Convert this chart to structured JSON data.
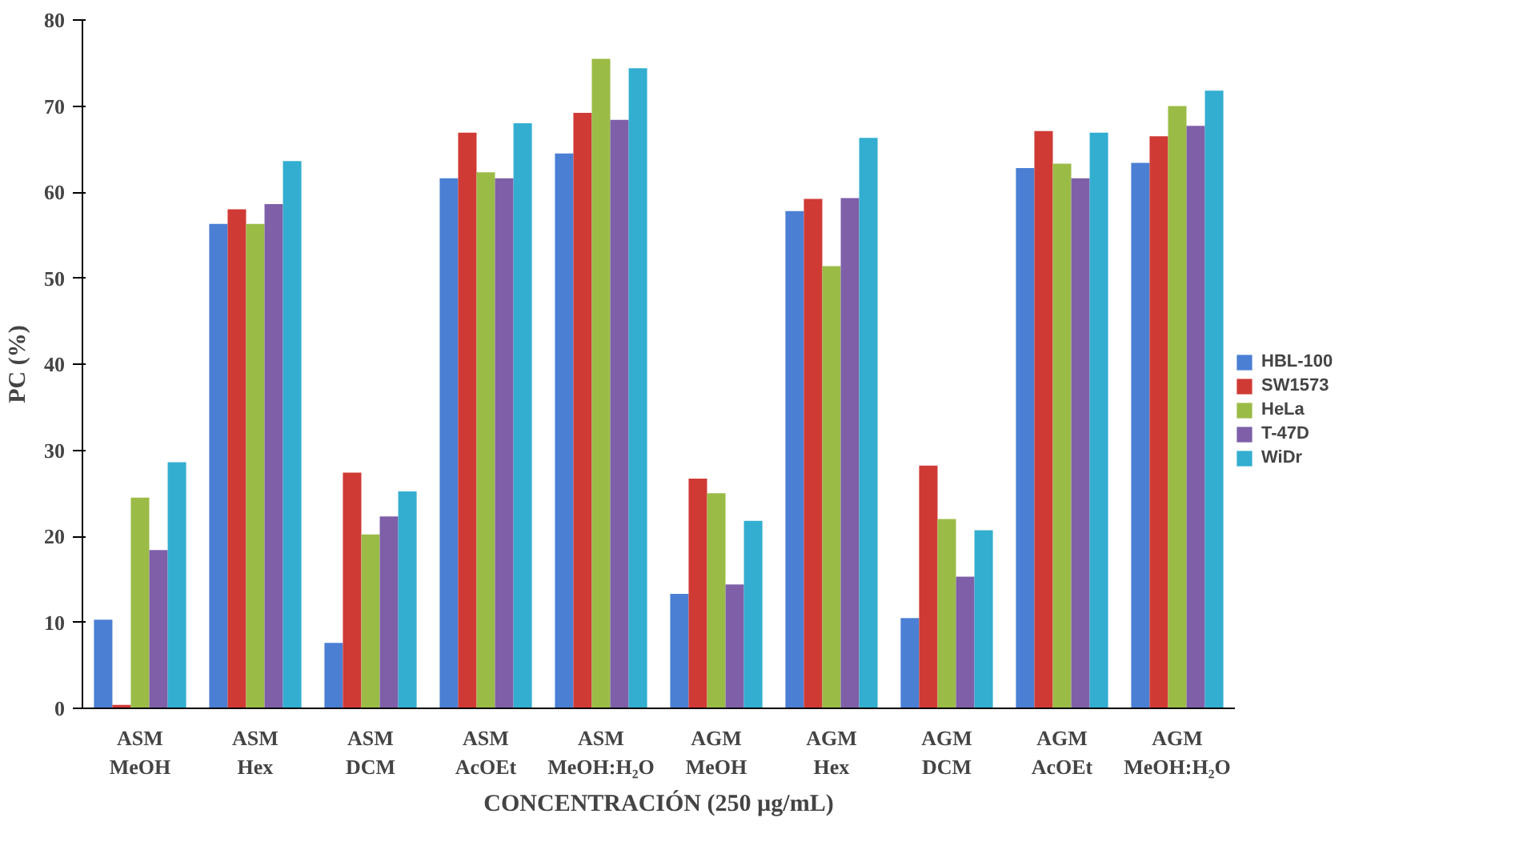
{
  "chart_data": {
    "type": "bar",
    "xlabel": "CONCENTRACIÓN (250 µg/mL)",
    "ylabel": "PC (%)",
    "categories": [
      "ASM\nMeOH",
      "ASM\nHex",
      "ASM\nDCM",
      "ASM\nAcOEt",
      "ASM\nMeOH:H₂O",
      "AGM\nMeOH",
      "AGM\nHex",
      "AGM\nDCM",
      "AGM\nAcOEt",
      "AGM\nMeOH:H₂O"
    ],
    "series": [
      {
        "name": "HBL-100",
        "color": "#4a7fd4",
        "values": [
          10.3,
          56.3,
          7.6,
          61.6,
          64.5,
          13.3,
          57.8,
          10.5,
          62.8,
          63.4
        ]
      },
      {
        "name": "SW1573",
        "color": "#d03a35",
        "values": [
          0.4,
          58.0,
          27.4,
          66.9,
          69.2,
          26.7,
          59.2,
          28.2,
          67.1,
          66.5
        ]
      },
      {
        "name": "HeLa",
        "color": "#9bbb47",
        "values": [
          24.5,
          56.3,
          20.2,
          62.3,
          75.5,
          25.0,
          51.4,
          22.0,
          63.3,
          70.0
        ]
      },
      {
        "name": "T-47D",
        "color": "#7e5fa8",
        "values": [
          18.4,
          58.6,
          22.3,
          61.6,
          68.4,
          14.4,
          59.3,
          15.3,
          61.6,
          67.7
        ]
      },
      {
        "name": "WiDr",
        "color": "#33aed0",
        "values": [
          28.6,
          63.6,
          25.2,
          68.0,
          74.4,
          21.8,
          66.3,
          20.7,
          66.9,
          71.8
        ]
      }
    ],
    "ylim": [
      0,
      80
    ],
    "yticks": [
      0,
      10,
      20,
      30,
      40,
      50,
      60,
      70,
      80
    ],
    "grid": false,
    "legend": "right"
  }
}
